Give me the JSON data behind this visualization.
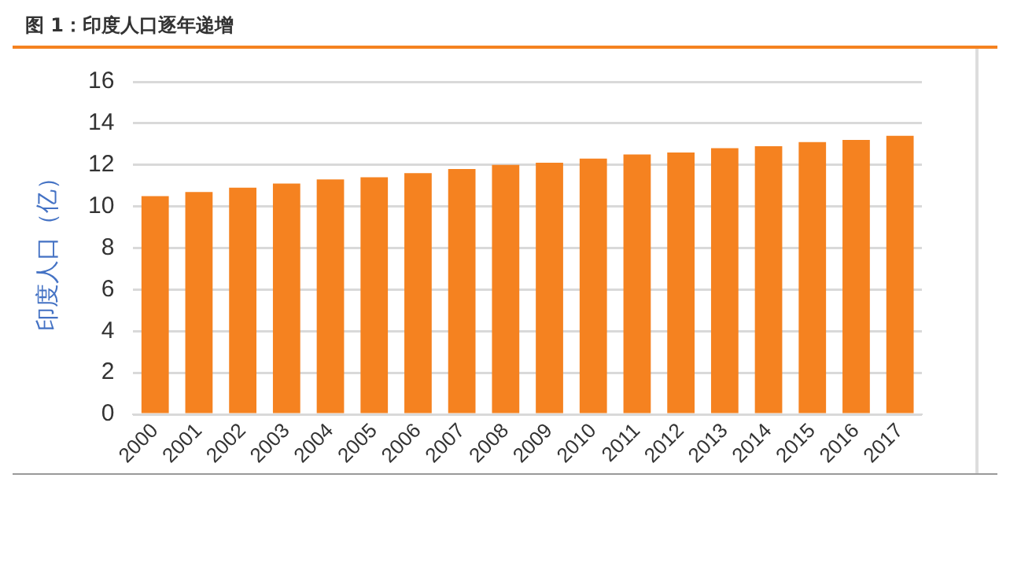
{
  "chart_data": {
    "type": "bar",
    "title": "图 1：印度人口逐年递增",
    "ylabel": "印度人口（亿）",
    "categories": [
      "2000",
      "2001",
      "2002",
      "2003",
      "2004",
      "2005",
      "2006",
      "2007",
      "2008",
      "2009",
      "2010",
      "2011",
      "2012",
      "2013",
      "2014",
      "2015",
      "2016",
      "2017"
    ],
    "values": [
      10.5,
      10.7,
      10.9,
      11.1,
      11.3,
      11.4,
      11.6,
      11.8,
      12.0,
      12.1,
      12.3,
      12.5,
      12.6,
      12.8,
      12.9,
      13.1,
      13.2,
      13.4
    ],
    "color": "#f58220",
    "ylim": [
      0,
      16
    ],
    "yticks": [
      0,
      2,
      4,
      6,
      8,
      10,
      12,
      14,
      16
    ],
    "grid": "y",
    "legend": false
  }
}
